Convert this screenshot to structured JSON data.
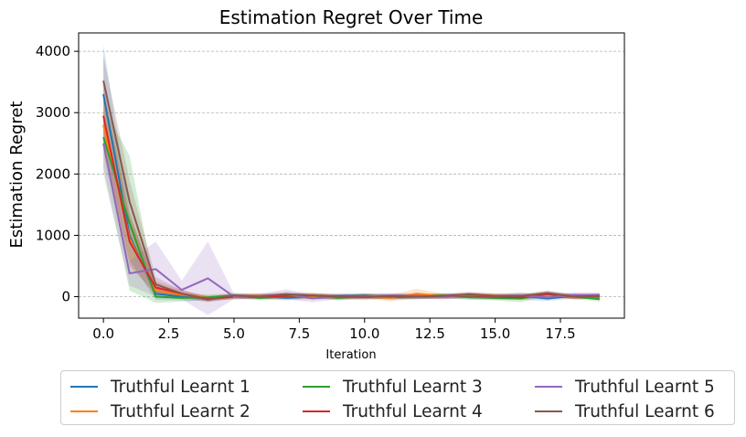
{
  "chart_data": {
    "type": "line",
    "title": "Estimation Regret Over Time",
    "xlabel": "Iteration",
    "ylabel": "Estimation Regret",
    "xlim": [
      -0.95,
      19.95
    ],
    "ylim": [
      -350,
      4300
    ],
    "x_ticks": [
      0.0,
      2.5,
      5.0,
      7.5,
      10.0,
      12.5,
      15.0,
      17.5
    ],
    "x_tick_labels": [
      "0.0",
      "2.5",
      "5.0",
      "7.5",
      "10.0",
      "12.5",
      "15.0",
      "17.5"
    ],
    "y_ticks": [
      0,
      1000,
      2000,
      3000,
      4000
    ],
    "y_tick_labels": [
      "0",
      "1000",
      "2000",
      "3000",
      "4000"
    ],
    "grid": "horizontal dashed",
    "legend_placement": "below plot, 3 columns",
    "x": [
      0,
      1,
      2,
      3,
      4,
      5,
      6,
      7,
      8,
      9,
      10,
      11,
      12,
      13,
      14,
      15,
      16,
      17,
      18,
      19
    ],
    "series": [
      {
        "name": "Truthful Learnt 1",
        "color": "#1f77b4",
        "values": [
          3300,
          1000,
          50,
          0,
          -30,
          0,
          10,
          -20,
          0,
          10,
          20,
          -10,
          0,
          10,
          0,
          -10,
          10,
          -30,
          10,
          0
        ],
        "band": [
          800,
          400,
          100,
          60,
          40,
          40,
          40,
          40,
          40,
          40,
          40,
          40,
          40,
          40,
          40,
          40,
          60,
          40,
          40,
          40
        ]
      },
      {
        "name": "Truthful Learnt 2",
        "color": "#ff7f0e",
        "values": [
          2800,
          950,
          100,
          30,
          -10,
          0,
          20,
          10,
          0,
          -10,
          0,
          -20,
          50,
          10,
          20,
          20,
          0,
          30,
          0,
          10
        ],
        "band": [
          500,
          400,
          100,
          60,
          40,
          40,
          40,
          40,
          40,
          40,
          40,
          50,
          80,
          40,
          40,
          40,
          40,
          40,
          40,
          40
        ]
      },
      {
        "name": "Truthful Learnt 3",
        "color": "#2ca02c",
        "values": [
          2600,
          1200,
          0,
          -20,
          -10,
          20,
          -20,
          0,
          20,
          -20,
          10,
          0,
          0,
          20,
          -10,
          -20,
          -30,
          50,
          0,
          -40
        ],
        "band": [
          500,
          1100,
          100,
          60,
          40,
          40,
          40,
          40,
          40,
          40,
          40,
          40,
          40,
          40,
          40,
          40,
          60,
          40,
          40,
          40
        ]
      },
      {
        "name": "Truthful Learnt 4",
        "color": "#d62728",
        "values": [
          2950,
          900,
          150,
          50,
          -40,
          0,
          0,
          10,
          20,
          0,
          10,
          0,
          10,
          0,
          20,
          0,
          -10,
          40,
          0,
          10
        ],
        "band": [
          500,
          400,
          100,
          60,
          40,
          40,
          40,
          40,
          40,
          40,
          40,
          40,
          40,
          40,
          40,
          40,
          40,
          40,
          40,
          40
        ]
      },
      {
        "name": "Truthful Learnt 5",
        "color": "#9467bd",
        "values": [
          2500,
          380,
          450,
          110,
          300,
          0,
          10,
          40,
          -30,
          0,
          0,
          20,
          10,
          0,
          30,
          10,
          20,
          -10,
          30,
          30
        ],
        "band": [
          500,
          200,
          450,
          150,
          600,
          40,
          40,
          80,
          60,
          40,
          40,
          40,
          40,
          40,
          40,
          40,
          40,
          40,
          40,
          40
        ]
      },
      {
        "name": "Truthful Learnt 6",
        "color": "#8c564b",
        "values": [
          3520,
          1550,
          200,
          50,
          -50,
          20,
          0,
          40,
          20,
          0,
          -10,
          10,
          0,
          10,
          40,
          10,
          10,
          60,
          0,
          10
        ],
        "band": [
          400,
          350,
          120,
          60,
          40,
          40,
          40,
          40,
          40,
          40,
          40,
          40,
          40,
          40,
          40,
          40,
          40,
          40,
          40,
          40
        ]
      }
    ]
  }
}
